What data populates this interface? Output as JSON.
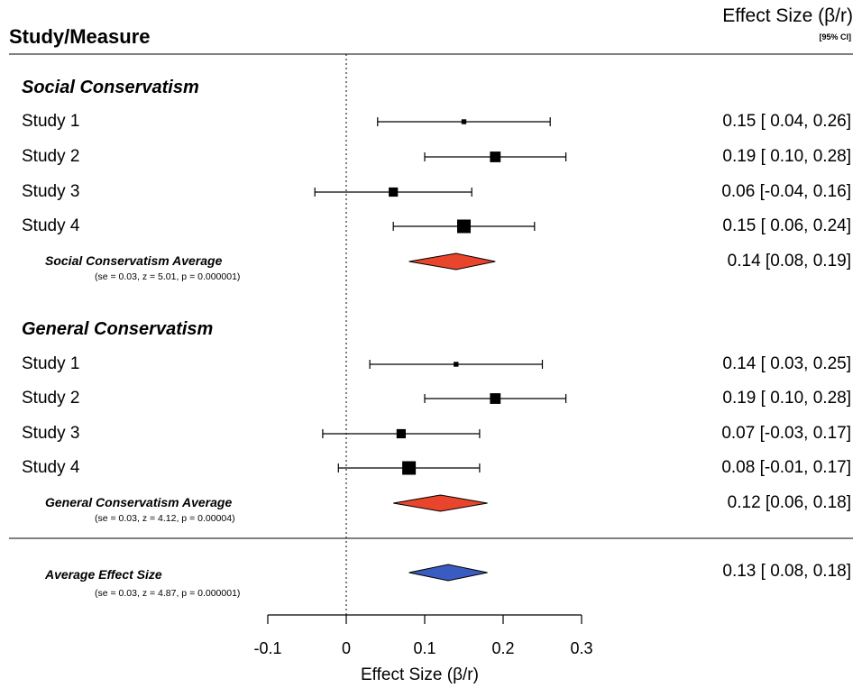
{
  "header": {
    "study_measure": "Study/Measure",
    "effect_size": "Effect Size (β/r)",
    "ci_label": "[95% CI]"
  },
  "x_axis_title": "Effect Size (β/r)",
  "colors": {
    "social_diamond": "#e8452c",
    "general_diamond": "#e8452c",
    "overall_diamond": "#3a5bbf"
  },
  "chart_data": {
    "type": "forest",
    "xlabel": "Effect Size (β/r)",
    "xlim": [
      -0.1,
      0.3
    ],
    "x_ticks": [
      "-0.1",
      "0",
      "0.1",
      "0.2",
      "0.3"
    ],
    "reference_line": 0,
    "sections": [
      {
        "title": "Social Conservatism",
        "studies": [
          {
            "label": "Study 1",
            "estimate": 0.15,
            "ci_low": 0.04,
            "ci_high": 0.26,
            "weight": 0.15,
            "text": "0.15 [ 0.04, 0.26]"
          },
          {
            "label": "Study 2",
            "estimate": 0.19,
            "ci_low": 0.1,
            "ci_high": 0.28,
            "weight": 0.55,
            "text": "0.19 [ 0.10, 0.28]"
          },
          {
            "label": "Study 3",
            "estimate": 0.06,
            "ci_low": -0.04,
            "ci_high": 0.16,
            "weight": 0.45,
            "text": "0.06 [-0.04, 0.16]"
          },
          {
            "label": "Study 4",
            "estimate": 0.15,
            "ci_low": 0.06,
            "ci_high": 0.24,
            "weight": 0.75,
            "text": "0.15 [ 0.06, 0.24]"
          }
        ],
        "average": {
          "label": "Social Conservatism Average",
          "stats": "(se = 0.03, z = 5.01, p = 0.000001)",
          "estimate": 0.14,
          "ci_low": 0.08,
          "ci_high": 0.19,
          "text": "0.14 [0.08, 0.19]",
          "color": "#e8452c"
        }
      },
      {
        "title": "General Conservatism",
        "studies": [
          {
            "label": "Study 1",
            "estimate": 0.14,
            "ci_low": 0.03,
            "ci_high": 0.25,
            "weight": 0.15,
            "text": "0.14 [ 0.03, 0.25]"
          },
          {
            "label": "Study 2",
            "estimate": 0.19,
            "ci_low": 0.1,
            "ci_high": 0.28,
            "weight": 0.55,
            "text": "0.19 [ 0.10, 0.28]"
          },
          {
            "label": "Study 3",
            "estimate": 0.07,
            "ci_low": -0.03,
            "ci_high": 0.17,
            "weight": 0.45,
            "text": "0.07 [-0.03, 0.17]"
          },
          {
            "label": "Study 4",
            "estimate": 0.08,
            "ci_low": -0.01,
            "ci_high": 0.17,
            "weight": 0.75,
            "text": "0.08 [-0.01, 0.17]"
          }
        ],
        "average": {
          "label": "General Conservatism Average",
          "stats": "(se = 0.03, z = 4.12, p = 0.00004)",
          "estimate": 0.12,
          "ci_low": 0.06,
          "ci_high": 0.18,
          "text": "0.12 [0.06, 0.18]",
          "color": "#e8452c"
        }
      }
    ],
    "overall": {
      "label": "Average Effect Size",
      "stats": "(se = 0.03, z = 4.87, p = 0.000001)",
      "estimate": 0.13,
      "ci_low": 0.08,
      "ci_high": 0.18,
      "text": "0.13 [ 0.08, 0.18]",
      "color": "#3a5bbf"
    }
  }
}
